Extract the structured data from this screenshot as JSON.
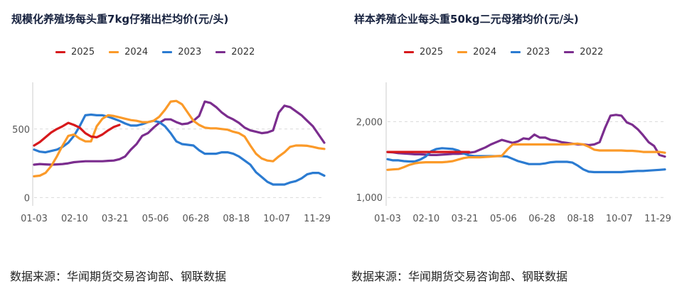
{
  "source_text": "数据来源：华闻期货交易咨询部、钢联数据",
  "colors": {
    "2025": "#d7191c",
    "2024": "#fb9a29",
    "2023": "#2b7bd1",
    "2022": "#7b2d8e"
  },
  "chart_data": [
    {
      "type": "line",
      "title": "规模化养殖场每头重7kg仔猪出栏均价(元/头)",
      "legend": [
        "2025",
        "2024",
        "2023",
        "2022"
      ],
      "x_ticks": [
        "01-03",
        "02-10",
        "03-21",
        "05-06",
        "06-28",
        "08-18",
        "10-07",
        "11-29"
      ],
      "y_ticks": [
        0,
        500
      ],
      "y_tick_labels": [
        "0",
        "500"
      ],
      "ylim": [
        -60,
        830
      ],
      "xlim": [
        1,
        52
      ],
      "series": [
        {
          "name": "2025",
          "x": [
            1,
            2,
            3,
            4,
            5,
            6,
            7,
            8,
            9,
            10,
            11,
            12,
            13,
            14,
            15,
            16
          ],
          "values": [
            380,
            405,
            440,
            475,
            500,
            520,
            545,
            530,
            510,
            470,
            445,
            440,
            460,
            490,
            515,
            530
          ]
        },
        {
          "name": "2024",
          "x": [
            1,
            2,
            3,
            4,
            5,
            6,
            7,
            8,
            9,
            10,
            11,
            12,
            13,
            14,
            15,
            16,
            17,
            18,
            19,
            20,
            21,
            22,
            23,
            24,
            25,
            26,
            27,
            28,
            29,
            30,
            31,
            32,
            33,
            34,
            35,
            36,
            37,
            38,
            39,
            40,
            41,
            42,
            43,
            44,
            45,
            46,
            47,
            48,
            49,
            50,
            51,
            52
          ],
          "values": [
            155,
            160,
            180,
            230,
            300,
            380,
            450,
            460,
            430,
            410,
            410,
            520,
            575,
            600,
            595,
            585,
            575,
            565,
            560,
            550,
            550,
            560,
            590,
            640,
            700,
            705,
            680,
            620,
            560,
            530,
            510,
            505,
            505,
            500,
            495,
            480,
            470,
            445,
            380,
            320,
            285,
            270,
            265,
            300,
            330,
            370,
            380,
            380,
            378,
            370,
            360,
            355
          ]
        },
        {
          "name": "2023",
          "x": [
            1,
            2,
            3,
            4,
            5,
            6,
            7,
            8,
            9,
            10,
            11,
            12,
            13,
            14,
            15,
            16,
            17,
            18,
            19,
            20,
            21,
            22,
            23,
            24,
            25,
            26,
            27,
            28,
            29,
            30,
            31,
            32,
            33,
            34,
            35,
            36,
            37,
            38,
            39,
            40,
            41,
            42,
            43,
            44,
            45,
            46,
            47,
            48,
            49,
            50,
            51,
            52
          ],
          "values": [
            350,
            335,
            330,
            340,
            350,
            370,
            400,
            450,
            520,
            600,
            605,
            600,
            600,
            590,
            575,
            560,
            540,
            525,
            525,
            535,
            550,
            560,
            550,
            520,
            470,
            410,
            390,
            385,
            380,
            345,
            320,
            320,
            320,
            330,
            330,
            320,
            300,
            270,
            240,
            185,
            150,
            115,
            95,
            95,
            95,
            110,
            120,
            140,
            170,
            180,
            180,
            160
          ]
        },
        {
          "name": "2022",
          "x": [
            1,
            2,
            3,
            4,
            5,
            6,
            7,
            8,
            9,
            10,
            11,
            12,
            13,
            14,
            15,
            16,
            17,
            18,
            19,
            20,
            21,
            22,
            23,
            24,
            25,
            26,
            27,
            28,
            29,
            30,
            31,
            32,
            33,
            34,
            35,
            36,
            37,
            38,
            39,
            40,
            41,
            42,
            43,
            44,
            45,
            46,
            47,
            48,
            49,
            50,
            51,
            52
          ],
          "values": [
            240,
            245,
            242,
            240,
            242,
            245,
            250,
            258,
            262,
            265,
            265,
            265,
            265,
            268,
            270,
            280,
            300,
            350,
            390,
            450,
            470,
            510,
            545,
            570,
            570,
            550,
            535,
            540,
            560,
            595,
            700,
            690,
            660,
            620,
            590,
            570,
            545,
            510,
            490,
            480,
            470,
            475,
            490,
            620,
            670,
            660,
            630,
            600,
            560,
            520,
            460,
            400
          ]
        }
      ]
    },
    {
      "type": "line",
      "title": "样本养殖企业每头重50kg二元母猪均价(元/头)",
      "legend": [
        "2025",
        "2024",
        "2023",
        "2022"
      ],
      "x_ticks": [
        "01-03",
        "02-10",
        "03-21",
        "05-06",
        "06-28",
        "08-18",
        "10-07",
        "11-29"
      ],
      "y_ticks": [
        1000,
        2000
      ],
      "y_tick_labels": [
        "1,000",
        "2,000"
      ],
      "ylim": [
        890,
        2500
      ],
      "xlim": [
        1,
        52
      ],
      "series": [
        {
          "name": "2025",
          "x": [
            1,
            2,
            3,
            4,
            5,
            6,
            7,
            8,
            9,
            10,
            11,
            12,
            13,
            14,
            15,
            16
          ],
          "values": [
            1600,
            1600,
            1600,
            1600,
            1600,
            1600,
            1600,
            1600,
            1600,
            1600,
            1600,
            1600,
            1600,
            1600,
            1600,
            1600
          ]
        },
        {
          "name": "2024",
          "x": [
            1,
            2,
            3,
            4,
            5,
            6,
            7,
            8,
            9,
            10,
            11,
            12,
            13,
            14,
            15,
            16,
            17,
            18,
            19,
            20,
            21,
            22,
            23,
            24,
            25,
            26,
            27,
            28,
            29,
            30,
            31,
            32,
            33,
            34,
            35,
            36,
            37,
            38,
            39,
            40,
            41,
            42,
            43,
            44,
            45,
            46,
            47,
            48,
            49,
            50,
            51,
            52
          ],
          "values": [
            1365,
            1370,
            1375,
            1400,
            1430,
            1450,
            1460,
            1465,
            1465,
            1465,
            1465,
            1470,
            1480,
            1500,
            1520,
            1530,
            1530,
            1530,
            1535,
            1540,
            1545,
            1550,
            1630,
            1700,
            1700,
            1700,
            1700,
            1700,
            1700,
            1700,
            1700,
            1700,
            1700,
            1700,
            1705,
            1710,
            1700,
            1670,
            1630,
            1620,
            1620,
            1620,
            1620,
            1620,
            1615,
            1615,
            1610,
            1600,
            1600,
            1600,
            1600,
            1590
          ]
        },
        {
          "name": "2023",
          "x": [
            1,
            2,
            3,
            4,
            5,
            6,
            7,
            8,
            9,
            10,
            11,
            12,
            13,
            14,
            15,
            16,
            17,
            18,
            19,
            20,
            21,
            22,
            23,
            24,
            25,
            26,
            27,
            28,
            29,
            30,
            31,
            32,
            33,
            34,
            35,
            36,
            37,
            38,
            39,
            40,
            41,
            42,
            43,
            44,
            45,
            46,
            47,
            48,
            49,
            50,
            51,
            52
          ],
          "values": [
            1505,
            1490,
            1490,
            1480,
            1475,
            1475,
            1500,
            1540,
            1610,
            1640,
            1650,
            1645,
            1640,
            1620,
            1580,
            1555,
            1545,
            1545,
            1545,
            1545,
            1545,
            1545,
            1540,
            1510,
            1480,
            1460,
            1440,
            1440,
            1440,
            1450,
            1465,
            1470,
            1470,
            1470,
            1460,
            1420,
            1370,
            1340,
            1335,
            1335,
            1335,
            1335,
            1335,
            1335,
            1340,
            1345,
            1350,
            1350,
            1355,
            1360,
            1365,
            1370
          ]
        },
        {
          "name": "2022",
          "x": [
            1,
            2,
            3,
            4,
            5,
            6,
            7,
            8,
            9,
            10,
            11,
            12,
            13,
            14,
            15,
            16,
            17,
            18,
            19,
            20,
            21,
            22,
            23,
            24,
            25,
            26,
            27,
            28,
            29,
            30,
            31,
            32,
            33,
            34,
            35,
            36,
            37,
            38,
            39,
            40,
            41,
            42,
            43,
            44,
            45,
            46,
            47,
            48,
            49,
            50,
            51,
            52
          ],
          "values": [
            1600,
            1595,
            1585,
            1580,
            1575,
            1570,
            1570,
            1565,
            1560,
            1560,
            1565,
            1570,
            1575,
            1575,
            1580,
            1590,
            1600,
            1630,
            1660,
            1700,
            1730,
            1760,
            1740,
            1720,
            1740,
            1780,
            1770,
            1830,
            1790,
            1790,
            1760,
            1750,
            1730,
            1720,
            1710,
            1700,
            1700,
            1690,
            1700,
            1730,
            1920,
            2080,
            2090,
            2080,
            1990,
            1960,
            1900,
            1820,
            1730,
            1680,
            1560,
            1540
          ]
        }
      ]
    }
  ]
}
